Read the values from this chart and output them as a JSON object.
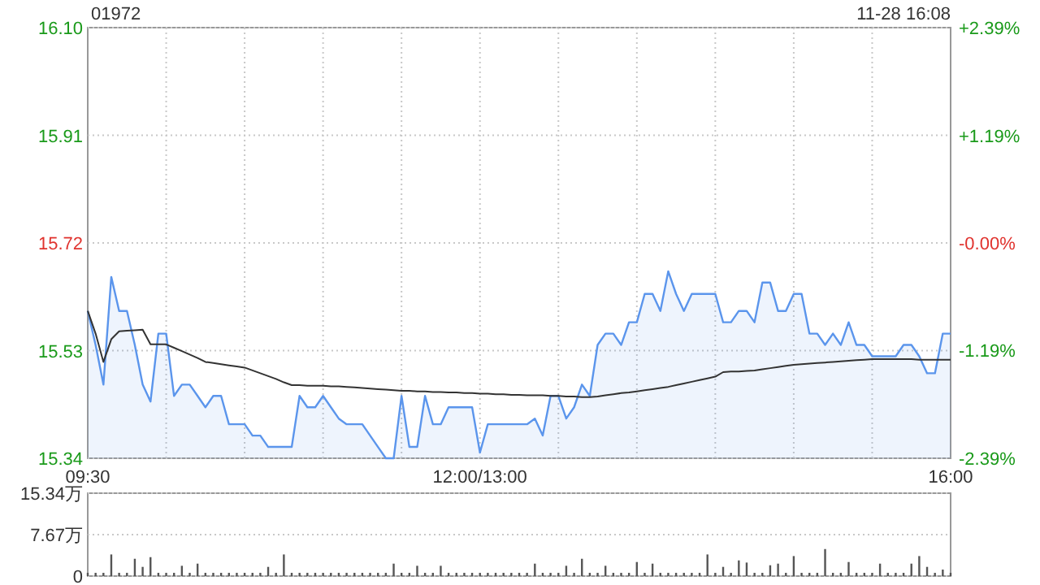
{
  "chart_data": [
    {
      "type": "area",
      "title": "01972",
      "annotations": [
        "11-28 16:08"
      ],
      "categories": [
        "09:30",
        null,
        null,
        null,
        null,
        null,
        null,
        null,
        null,
        null,
        null,
        null,
        null,
        null,
        null,
        null,
        null,
        null,
        null,
        null,
        null,
        null,
        null,
        null,
        null,
        null,
        null,
        null,
        null,
        null,
        null,
        null,
        null,
        null,
        null,
        null,
        null,
        null,
        null,
        null,
        null,
        null,
        null,
        null,
        null,
        null,
        null,
        null,
        null,
        null,
        "12:00/13:00",
        null,
        null,
        null,
        null,
        null,
        null,
        null,
        null,
        null,
        null,
        null,
        null,
        null,
        null,
        null,
        null,
        null,
        null,
        null,
        null,
        null,
        null,
        null,
        null,
        null,
        null,
        null,
        null,
        null,
        null,
        null,
        null,
        null,
        null,
        null,
        null,
        null,
        null,
        null,
        null,
        null,
        null,
        null,
        null,
        null,
        null,
        null,
        null,
        null,
        null,
        null,
        null,
        null,
        null,
        null,
        null,
        null,
        null,
        null,
        "16:00"
      ],
      "ylim": [
        15.34,
        16.1
      ],
      "yticks": [
        {
          "value": 15.34,
          "label": "15.34"
        },
        {
          "value": 15.53,
          "label": "15.53"
        },
        {
          "value": 15.72,
          "label": "15.72"
        },
        {
          "value": 15.91,
          "label": "15.91"
        },
        {
          "value": 16.1,
          "label": "16.10"
        }
      ],
      "y2lim": [
        -2.39,
        2.39
      ],
      "y2ticks": [
        {
          "value": -2.39,
          "label": "-2.39%"
        },
        {
          "value": -1.19,
          "label": "-1.19%"
        },
        {
          "value": 0,
          "label": "-0.00%"
        },
        {
          "value": 1.19,
          "label": "+1.19%"
        },
        {
          "value": 2.39,
          "label": "+2.39%"
        }
      ],
      "grid": true,
      "series": [
        {
          "color": "#5b95ec",
          "values": [
            15.6,
            15.54,
            15.47,
            15.66,
            15.6,
            15.6,
            15.54,
            15.47,
            15.44,
            15.56,
            15.56,
            15.45,
            15.47,
            15.47,
            15.45,
            15.43,
            15.45,
            15.45,
            15.4,
            15.4,
            15.4,
            15.38,
            15.38,
            15.36,
            15.36,
            15.36,
            15.36,
            15.45,
            15.43,
            15.43,
            15.45,
            15.43,
            15.41,
            15.4,
            15.4,
            15.4,
            15.38,
            15.36,
            15.34,
            15.34,
            15.45,
            15.36,
            15.36,
            15.45,
            15.4,
            15.4,
            15.43,
            15.43,
            15.43,
            15.43,
            15.35,
            15.4,
            15.4,
            15.4,
            15.4,
            15.4,
            15.4,
            15.41,
            15.38,
            15.45,
            15.45,
            15.41,
            15.43,
            15.47,
            15.45,
            15.54,
            15.56,
            15.56,
            15.54,
            15.58,
            15.58,
            15.63,
            15.63,
            15.6,
            15.67,
            15.63,
            15.6,
            15.63,
            15.63,
            15.63,
            15.63,
            15.58,
            15.58,
            15.6,
            15.6,
            15.58,
            15.65,
            15.65,
            15.6,
            15.6,
            15.63,
            15.63,
            15.56,
            15.56,
            15.54,
            15.56,
            15.54,
            15.58,
            15.54,
            15.54,
            15.52,
            15.52,
            15.52,
            15.52,
            15.54,
            15.54,
            15.52,
            15.49,
            15.49,
            15.56,
            15.56
          ]
        },
        {
          "type": "line",
          "color": "#333333",
          "values": [
            15.6,
            15.56,
            15.51,
            15.55,
            15.564,
            15.565,
            15.566,
            15.567,
            15.541,
            15.541,
            15.541,
            15.535,
            15.529,
            15.523,
            15.517,
            15.51,
            15.508,
            15.506,
            15.504,
            15.502,
            15.5,
            15.495,
            15.49,
            15.485,
            15.48,
            15.474,
            15.469,
            15.469,
            15.468,
            15.468,
            15.468,
            15.467,
            15.467,
            15.466,
            15.465,
            15.464,
            15.463,
            15.462,
            15.461,
            15.46,
            15.459,
            15.459,
            15.458,
            15.458,
            15.457,
            15.457,
            15.456,
            15.456,
            15.455,
            15.455,
            15.454,
            15.454,
            15.453,
            15.453,
            15.452,
            15.452,
            15.451,
            15.451,
            15.451,
            15.45,
            15.45,
            15.449,
            15.449,
            15.448,
            15.448,
            15.449,
            15.451,
            15.453,
            15.455,
            15.456,
            15.458,
            15.46,
            15.462,
            15.464,
            15.466,
            15.469,
            15.472,
            15.475,
            15.478,
            15.481,
            15.484,
            15.492,
            15.493,
            15.493,
            15.494,
            15.495,
            15.497,
            15.499,
            15.501,
            15.503,
            15.505,
            15.506,
            15.507,
            15.508,
            15.509,
            15.51,
            15.511,
            15.512,
            15.513,
            15.514,
            15.515,
            15.515,
            15.515,
            15.515,
            15.515,
            15.515,
            15.514,
            15.514,
            15.514,
            15.514,
            15.514
          ]
        }
      ]
    },
    {
      "type": "bar",
      "categories": [
        null,
        null,
        null,
        null,
        null,
        null,
        null,
        null,
        null,
        null,
        null,
        null,
        null,
        null,
        null,
        null,
        null,
        null,
        null,
        null,
        null,
        null,
        null,
        null,
        null,
        null,
        null,
        null,
        null,
        null,
        null,
        null,
        null,
        null,
        null,
        null,
        null,
        null,
        null,
        null,
        null,
        null,
        null,
        null,
        null,
        null,
        null,
        null,
        null,
        null,
        null,
        null,
        null,
        null,
        null,
        null,
        null,
        null,
        null,
        null,
        null,
        null,
        null,
        null,
        null,
        null,
        null,
        null,
        null,
        null,
        null,
        null,
        null,
        null,
        null,
        null,
        null,
        null,
        null,
        null,
        null,
        null,
        null,
        null,
        null,
        null,
        null,
        null,
        null,
        null,
        null,
        null,
        null,
        null,
        null,
        null,
        null,
        null,
        null,
        null,
        null,
        null,
        null,
        null,
        null,
        null,
        null,
        null,
        null,
        null,
        null
      ],
      "ylim": [
        0,
        15.34
      ],
      "yticks": [
        {
          "value": 0,
          "label": "0"
        },
        {
          "value": 7.67,
          "label": "7.67万"
        },
        {
          "value": 15.34,
          "label": "15.34万"
        }
      ],
      "grid": "y",
      "tick_labels": "y",
      "series": [
        {
          "color": "#555555",
          "values": [
            0.6,
            0.6,
            0.6,
            4.0,
            0.6,
            0.6,
            3.2,
            1.7,
            3.5,
            0.6,
            0.6,
            0.6,
            1.9,
            0.6,
            2.3,
            0.6,
            0.6,
            0.6,
            0.6,
            0.6,
            0.6,
            0.6,
            0.6,
            1.7,
            0.6,
            4.0,
            0.6,
            0.6,
            0.6,
            0.6,
            0.6,
            0.6,
            0.6,
            0.6,
            0.6,
            0.6,
            0.6,
            0.6,
            0.6,
            2.3,
            0.6,
            0.6,
            1.9,
            0.6,
            0.6,
            1.9,
            0.6,
            0.6,
            0.6,
            0.6,
            0.6,
            0.6,
            0.6,
            0.6,
            0.6,
            0.6,
            0.6,
            2.3,
            0.6,
            0.6,
            0.6,
            1.9,
            0.6,
            3.2,
            0.6,
            0.6,
            1.9,
            0.6,
            0.6,
            0.6,
            2.6,
            0.6,
            2.3,
            0.6,
            0.6,
            0.6,
            0.6,
            0.6,
            0.6,
            4.0,
            0.6,
            1.7,
            0.6,
            2.9,
            2.5,
            0.6,
            0.6,
            2.0,
            2.3,
            0.6,
            3.7,
            0.6,
            0.6,
            0.6,
            5.0,
            0.6,
            0.6,
            2.6,
            0.6,
            0.6,
            0.6,
            2.3,
            0.6,
            0.6,
            0.6,
            2.3,
            3.7,
            1.7,
            0.6,
            1.2,
            0.6
          ]
        }
      ]
    }
  ]
}
